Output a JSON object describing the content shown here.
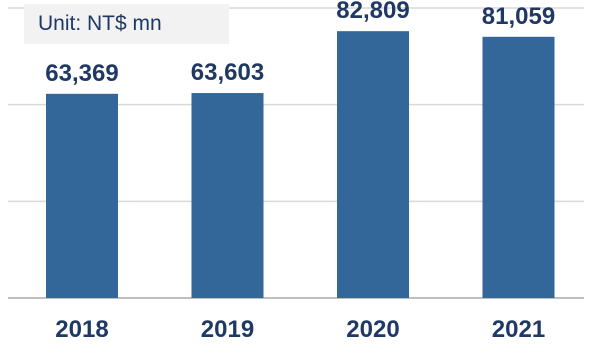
{
  "chart_data": {
    "type": "bar",
    "unit_label": "Unit: NT$ mn",
    "categories": [
      "2018",
      "2019",
      "2020",
      "2021"
    ],
    "values": [
      63369,
      63603,
      82809,
      81059
    ],
    "value_labels": [
      "63,369",
      "63,603",
      "82,809",
      "81,059"
    ],
    "ylim": [
      0,
      90000
    ],
    "grid": true,
    "bar_color": "#336699",
    "grid_color": "#d9d9d9",
    "text_color": "#1f3864"
  }
}
